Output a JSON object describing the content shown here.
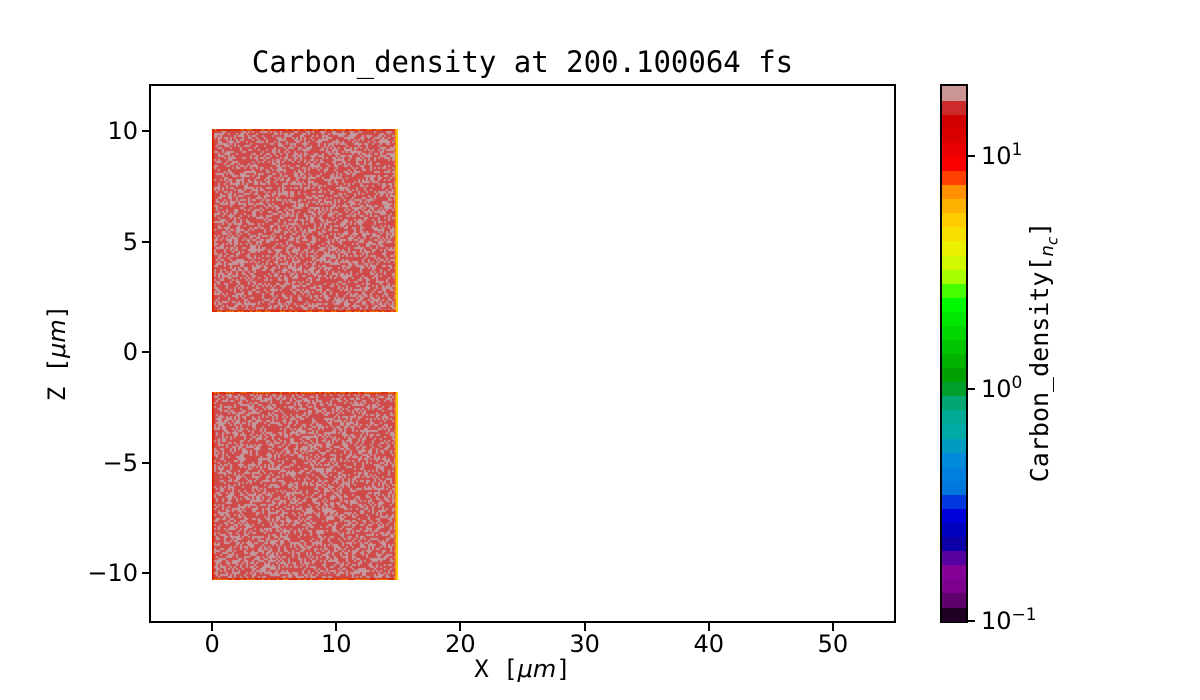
{
  "figure": {
    "title": "Carbon_density at 200.100064 fs",
    "background": "#ffffff"
  },
  "axes": {
    "xlabel": {
      "prefix": "X [",
      "math": "μm",
      "suffix": "]"
    },
    "ylabel": {
      "prefix": "Z [",
      "math": "μm",
      "suffix": "]"
    },
    "x_tick_values": [
      0,
      10,
      20,
      30,
      40,
      50
    ],
    "x_tick_labels": [
      "0",
      "10",
      "20",
      "30",
      "40",
      "50"
    ],
    "y_tick_values": [
      10,
      5,
      0,
      -5,
      -10
    ],
    "y_tick_labels": [
      "10",
      "5",
      "0",
      "−5",
      "−10"
    ]
  },
  "colorbar": {
    "label": {
      "prefix": "Carbon_density[",
      "math_italic_sub": "nc",
      "suffix": "]"
    },
    "scale": "log",
    "vmin": 0.1,
    "vmax": 20,
    "n_bands": 38,
    "colormap_name": "nipy_spectral (discretized)",
    "ticks": [
      {
        "value": 10,
        "base": "10",
        "exp": "1"
      },
      {
        "value": 1,
        "base": "10",
        "exp": "0"
      },
      {
        "value": 0.1,
        "base": "10",
        "exp": "−1"
      }
    ],
    "colormap_stops": [
      [
        0.0,
        "#000000"
      ],
      [
        0.05,
        "#770088"
      ],
      [
        0.1,
        "#880099"
      ],
      [
        0.15,
        "#0000aa"
      ],
      [
        0.2,
        "#0000dd"
      ],
      [
        0.25,
        "#0077dd"
      ],
      [
        0.3,
        "#0088dd"
      ],
      [
        0.35,
        "#00aaaa"
      ],
      [
        0.4,
        "#00aa88"
      ],
      [
        0.45,
        "#009900"
      ],
      [
        0.5,
        "#00bb00"
      ],
      [
        0.55,
        "#00dd00"
      ],
      [
        0.6,
        "#00ff00"
      ],
      [
        0.65,
        "#bbff00"
      ],
      [
        0.7,
        "#eeee00"
      ],
      [
        0.75,
        "#ffcc00"
      ],
      [
        0.8,
        "#ff9900"
      ],
      [
        0.85,
        "#ff0000"
      ],
      [
        0.9,
        "#dd0000"
      ],
      [
        0.95,
        "#cc0000"
      ],
      [
        1.0,
        "#cccccc"
      ]
    ]
  },
  "colors": {
    "slab_red": "#cf4949",
    "slab_speckle": "#c39ba0",
    "edge_left": "#dd2000",
    "edge_horizontal": "#d83010",
    "edge_horizontal_speck": "#ff9800",
    "edge_right_outer": "#ffc800",
    "edge_right_inner": "#ff8800",
    "spine": "#000000",
    "text": "#000000"
  },
  "chart_data": {
    "type": "heatmap",
    "title": "Carbon_density at 200.100064 fs",
    "time_fs": 200.100064,
    "xlabel": "X [μm]",
    "ylabel": "Z [μm]",
    "colorbar_label": "Carbon_density[n_c]",
    "xlim": [
      -5,
      55
    ],
    "ylim": [
      -12.2,
      12.1
    ],
    "colorbar_scale": "log",
    "colorbar_range_nc": [
      0.1,
      20
    ],
    "grid": false,
    "legend": "none (colorbar on right)",
    "regions": [
      {
        "name": "upper-slab",
        "x_range": [
          0,
          15
        ],
        "z_range": [
          1.8,
          10.1
        ],
        "density_nc": "≈10–20 (red with gray-pink speckle noise)"
      },
      {
        "name": "lower-slab",
        "x_range": [
          0,
          15
        ],
        "z_range": [
          -10.3,
          -1.8
        ],
        "density_nc": "≈10–20 (red with gray-pink speckle noise)"
      },
      {
        "name": "vacuum-gap",
        "x_range": [
          0,
          15
        ],
        "z_range": [
          -1.8,
          1.8
        ],
        "density_nc": "0 (white)"
      },
      {
        "name": "background",
        "density_nc": "0 (white)"
      }
    ]
  }
}
